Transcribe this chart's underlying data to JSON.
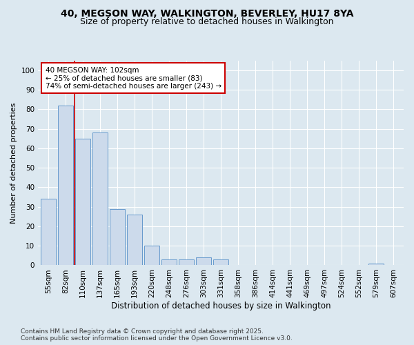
{
  "title1": "40, MEGSON WAY, WALKINGTON, BEVERLEY, HU17 8YA",
  "title2": "Size of property relative to detached houses in Walkington",
  "xlabel": "Distribution of detached houses by size in Walkington",
  "ylabel": "Number of detached properties",
  "categories": [
    "55sqm",
    "82sqm",
    "110sqm",
    "137sqm",
    "165sqm",
    "193sqm",
    "220sqm",
    "248sqm",
    "276sqm",
    "303sqm",
    "331sqm",
    "358sqm",
    "386sqm",
    "414sqm",
    "441sqm",
    "469sqm",
    "497sqm",
    "524sqm",
    "552sqm",
    "579sqm",
    "607sqm"
  ],
  "values": [
    34,
    82,
    65,
    68,
    29,
    26,
    10,
    3,
    3,
    4,
    3,
    0,
    0,
    0,
    0,
    0,
    0,
    0,
    0,
    1,
    0
  ],
  "bar_color": "#ccdaeb",
  "bar_edge_color": "#6699cc",
  "highlight_line_color": "#cc0000",
  "annotation_text": "40 MEGSON WAY: 102sqm\n← 25% of detached houses are smaller (83)\n74% of semi-detached houses are larger (243) →",
  "annotation_box_facecolor": "#ffffff",
  "annotation_box_edgecolor": "#cc0000",
  "ylim": [
    0,
    105
  ],
  "yticks": [
    0,
    10,
    20,
    30,
    40,
    50,
    60,
    70,
    80,
    90,
    100
  ],
  "footer1": "Contains HM Land Registry data © Crown copyright and database right 2025.",
  "footer2": "Contains public sector information licensed under the Open Government Licence v3.0.",
  "bg_color": "#dce8f0",
  "grid_color": "#ffffff",
  "title1_fontsize": 10,
  "title2_fontsize": 9,
  "xlabel_fontsize": 8.5,
  "ylabel_fontsize": 8,
  "tick_fontsize": 7.5,
  "annot_fontsize": 7.5,
  "footer_fontsize": 6.5
}
